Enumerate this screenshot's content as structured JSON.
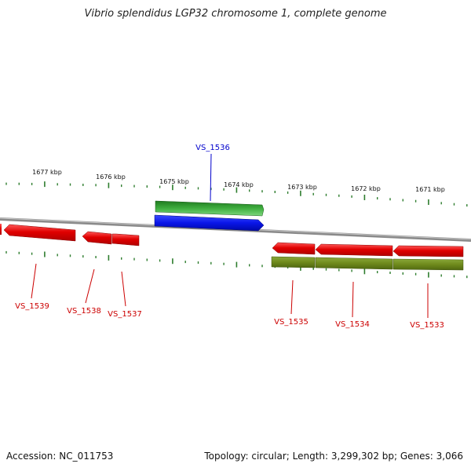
{
  "title": "Vibrio splendidus LGP32 chromosome 1, complete genome",
  "footer": {
    "accession": "Accession: NC_011753",
    "summary": "Topology: circular; Length: 3,299,302 bp; Genes: 3,066"
  },
  "colors": {
    "backbone": "#8a8a8a",
    "tick": "#2e7d2e",
    "gene_red": "#e00000",
    "gene_label_red": "#cc0000",
    "gene_label_blue": "#0000cc",
    "feature_green": "#2f9a2f",
    "feature_blue": "#0a16e8",
    "feature_olive": "#6f8a1c"
  },
  "scale_labels": [
    "1677 kbp",
    "1676 kbp",
    "1675 kbp",
    "1674 kbp",
    "1673 kbp",
    "1672 kbp",
    "1671 kbp"
  ],
  "gene_labels": [
    "VS_1536",
    "VS_1539",
    "VS_1538",
    "VS_1537",
    "VS_1535",
    "VS_1534",
    "VS_1533"
  ]
}
